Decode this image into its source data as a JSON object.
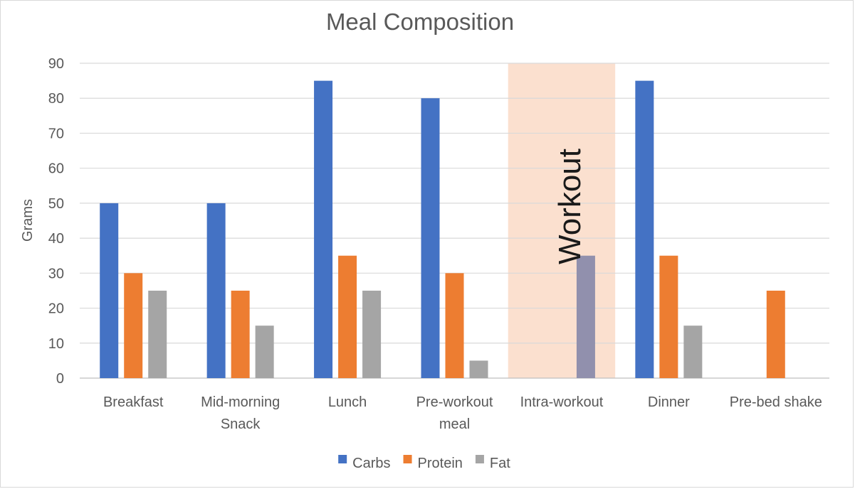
{
  "chart_data": {
    "type": "bar",
    "title": "Meal Composition",
    "ylabel": "Grams",
    "xlabel": "",
    "ylim": [
      0,
      90
    ],
    "yticks": [
      0,
      10,
      20,
      30,
      40,
      50,
      60,
      70,
      80,
      90
    ],
    "grid": true,
    "legend_position": "bottom",
    "categories": [
      [
        "Breakfast"
      ],
      [
        "Mid-morning",
        "Snack"
      ],
      [
        "Lunch"
      ],
      [
        "Pre-workout",
        "meal"
      ],
      [
        "Intra-workout"
      ],
      [
        "Dinner"
      ],
      [
        "Pre-bed shake"
      ]
    ],
    "series": [
      {
        "name": "Carbs",
        "color": "#4472C4",
        "values": [
          50,
          50,
          85,
          80,
          0,
          85,
          0
        ]
      },
      {
        "name": "Protein",
        "color": "#ED7D31",
        "values": [
          30,
          25,
          35,
          30,
          0,
          35,
          25
        ]
      },
      {
        "name": "Fat",
        "color": "#A5A5A5",
        "values": [
          25,
          15,
          25,
          5,
          35,
          15,
          0
        ]
      }
    ],
    "annotation": {
      "label": "Workout",
      "category_index": 4,
      "fill": "#FBE0CF"
    }
  }
}
